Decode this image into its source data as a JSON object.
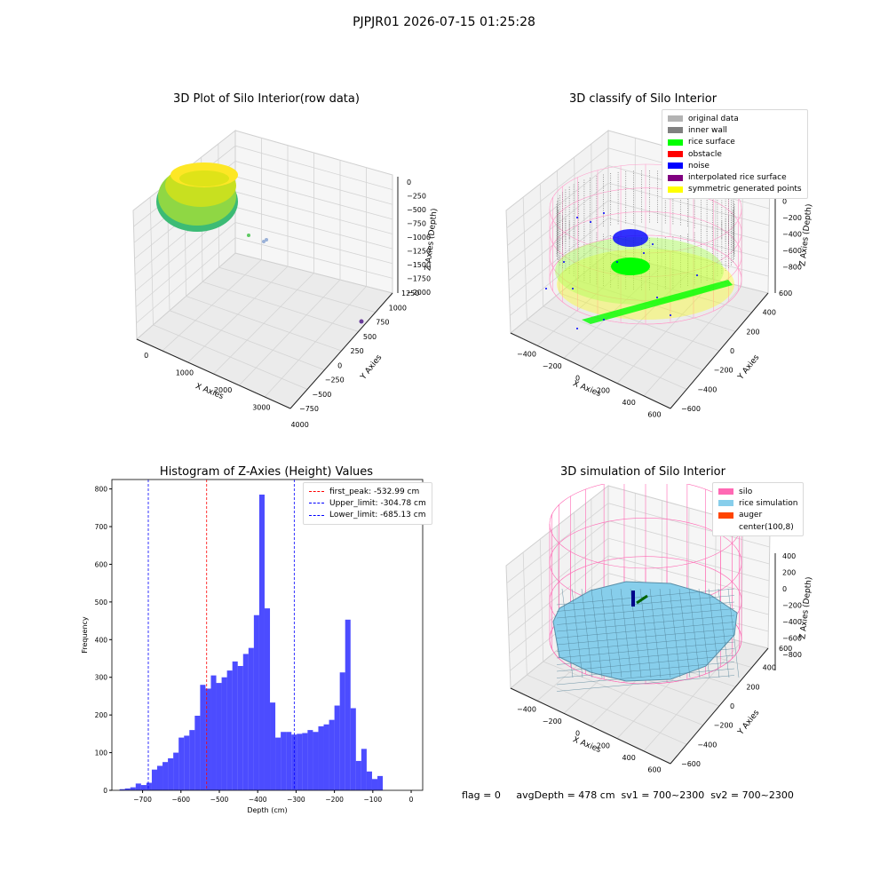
{
  "suptitle": "PJPJR01 2026-07-15 01:25:28",
  "panels": {
    "p1": {
      "title": "3D Plot of Silo Interior(row data)",
      "xlabel": "X Axies",
      "ylabel": "Y Axies",
      "zlabel": "Z Axies (Depth)",
      "xticks": [
        "0",
        "1000",
        "2000",
        "3000",
        "4000"
      ],
      "yticks": [
        "1250",
        "1000",
        "750",
        "500",
        "250",
        "0",
        "−250",
        "−500",
        "−750"
      ],
      "zticks": [
        "0",
        "−250",
        "−500",
        "−750",
        "−1000",
        "−1250",
        "−1500",
        "−1750",
        "−2000"
      ]
    },
    "p2": {
      "title": "3D classify of Silo Interior",
      "xlabel": "X Axies",
      "ylabel": "Y Axies",
      "zlabel": "Z Axies (Depth)",
      "xticks": [
        "−400",
        "−200",
        "0",
        "200",
        "400",
        "600"
      ],
      "yticks": [
        "600",
        "400",
        "200",
        "0",
        "−200",
        "−400",
        "−600"
      ],
      "zticks": [
        "200",
        "0",
        "−200",
        "−400",
        "−600",
        "−800"
      ],
      "legend": [
        {
          "label": "original data",
          "color": "#b3b3b3"
        },
        {
          "label": "inner wall",
          "color": "#808080"
        },
        {
          "label": "rice surface",
          "color": "#00ff00"
        },
        {
          "label": "obstacle",
          "color": "#ff0000"
        },
        {
          "label": "noise",
          "color": "#0000ff"
        },
        {
          "label": "interpolated rice surface",
          "color": "#800080"
        },
        {
          "label": "symmetric generated points",
          "color": "#ffff00"
        }
      ]
    },
    "p3": {
      "title": "Histogram of Z-Axies (Height) Values",
      "legend": [
        {
          "label": "first_peak: -532.99 cm",
          "color": "#ff0000"
        },
        {
          "label": "Upper_limit: -304.78 cm",
          "color": "#0000ff"
        },
        {
          "label": "Lower_limit: -685.13 cm",
          "color": "#0000ff"
        }
      ]
    },
    "p4": {
      "title": "3D simulation of Silo Interior",
      "xlabel": "X Axies",
      "ylabel": "Y Axies",
      "zlabel": "Z Axies (Depth)",
      "xticks": [
        "−400",
        "−200",
        "0",
        "200",
        "400",
        "600"
      ],
      "yticks": [
        "600",
        "400",
        "200",
        "0",
        "−200",
        "−400",
        "−600"
      ],
      "zticks": [
        "400",
        "200",
        "0",
        "−200",
        "−400",
        "−600",
        "−800"
      ],
      "legend": [
        {
          "label": "silo",
          "color": "#ff69b4"
        },
        {
          "label": "rice simulation",
          "color": "#87ceeb"
        },
        {
          "label": "auger",
          "color": "#ff4500"
        },
        {
          "label": "center(100,8)",
          "color": ""
        }
      ]
    }
  },
  "footer": "flag = 0     avgDepth = 478 cm  sv1 = 700~2300  sv2 = 700~2300",
  "chart_data": {
    "type": "bar",
    "title": "Histogram of Z-Axies (Height) Values",
    "xlabel": "Depth (cm)",
    "ylabel": "Frequency",
    "xlim": [
      -780,
      30
    ],
    "ylim": [
      0,
      825
    ],
    "xticks": [
      -700,
      -600,
      -500,
      -400,
      -300,
      -200,
      -100,
      0
    ],
    "yticks": [
      0,
      100,
      200,
      300,
      400,
      500,
      600,
      700,
      800
    ],
    "bin_width": 14,
    "bin_start": -760,
    "values": [
      3,
      5,
      8,
      18,
      14,
      20,
      55,
      65,
      75,
      85,
      100,
      140,
      145,
      160,
      198,
      280,
      270,
      305,
      285,
      300,
      318,
      342,
      330,
      362,
      378,
      465,
      785,
      483,
      233,
      140,
      155,
      155,
      148,
      150,
      152,
      160,
      155,
      170,
      175,
      187,
      225,
      313,
      453,
      218,
      78,
      110,
      50,
      30,
      38
    ],
    "bar_color": "#0000ff",
    "bar_alpha": 0.7,
    "vlines": [
      {
        "name": "first_peak",
        "x": -532.99,
        "color": "#ff0000"
      },
      {
        "name": "Upper_limit",
        "x": -304.78,
        "color": "#0000ff"
      },
      {
        "name": "Lower_limit",
        "x": -685.13,
        "color": "#0000ff"
      }
    ]
  }
}
